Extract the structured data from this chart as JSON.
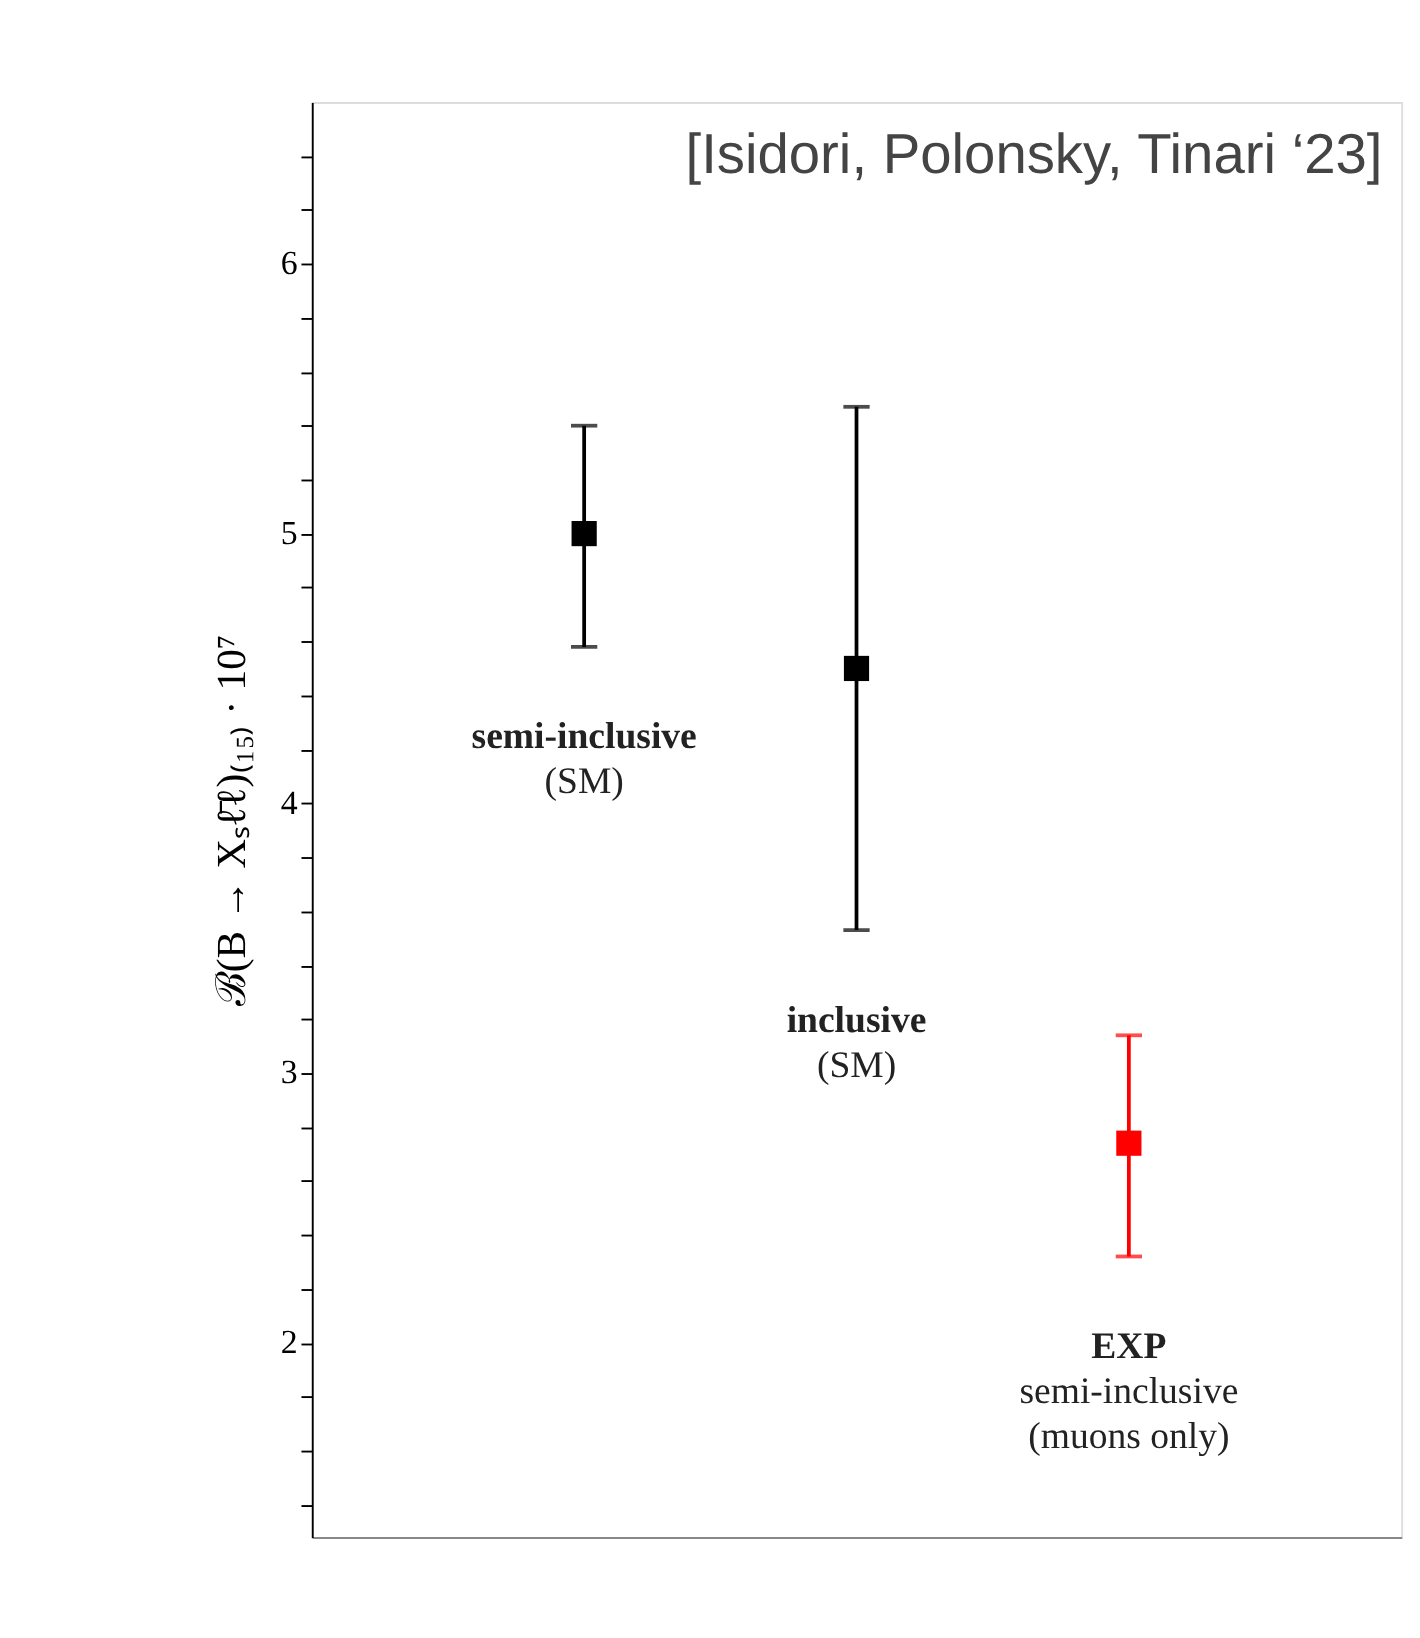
{
  "chart_data": {
    "type": "scatter",
    "ylabel": "ℬ(B → Xₛℓ̄ℓ)₍₁₅₎ · 10⁷",
    "categories": [
      null,
      null,
      null
    ],
    "values": [
      5.0,
      4.5,
      2.74
    ],
    "errors": [
      [
        4.58,
        5.4
      ],
      [
        3.53,
        5.47
      ],
      [
        2.32,
        3.14
      ]
    ],
    "colors": [
      "#000000",
      "#000000",
      "#ff0000"
    ],
    "marker": "square",
    "ylim": [
      1.28,
      6.6
    ],
    "yticks": [
      {
        "value": 1.4,
        "label": null
      },
      {
        "value": 1.6,
        "label": null
      },
      {
        "value": 1.8,
        "label": null
      },
      2,
      {
        "value": 2.2,
        "label": null
      },
      {
        "value": 2.4,
        "label": null
      },
      {
        "value": 2.6,
        "label": null
      },
      {
        "value": 2.8,
        "label": null
      },
      3,
      {
        "value": 3.2,
        "label": null
      },
      {
        "value": 3.4,
        "label": null
      },
      {
        "value": 3.6,
        "label": null
      },
      {
        "value": 3.8,
        "label": null
      },
      4,
      {
        "value": 4.2,
        "label": null
      },
      {
        "value": 4.4,
        "label": null
      },
      {
        "value": 4.6,
        "label": null
      },
      {
        "value": 4.8,
        "label": null
      },
      5,
      {
        "value": 5.2,
        "label": null
      },
      {
        "value": 5.4,
        "label": null
      },
      {
        "value": 5.6,
        "label": null
      },
      {
        "value": 5.8,
        "label": null
      },
      6,
      {
        "value": 6.2,
        "label": null
      },
      {
        "value": 6.4,
        "label": null
      }
    ],
    "tick_labels": "y",
    "grid": false,
    "annotations": [
      "[Isidori, Polonsky, Tinari ‘23]",
      "semi-inclusive\n(SM)",
      "inclusive\n(SM)",
      "EXP\nsemi-inclusive\n(muons only)"
    ]
  }
}
